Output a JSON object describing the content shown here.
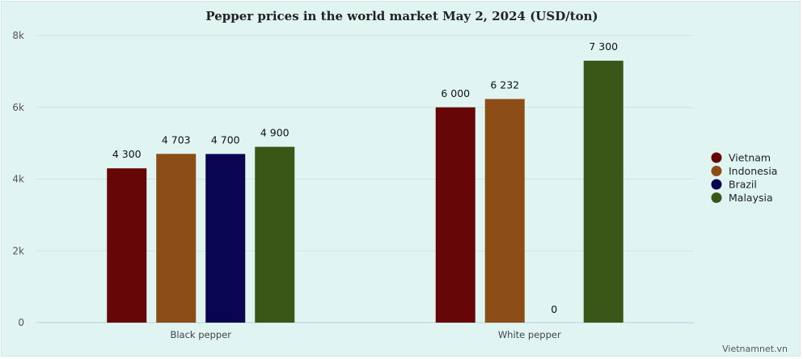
{
  "chart_data": {
    "type": "bar",
    "title": "Pepper prices in the world market May 2, 2024 (USD/ton)",
    "categories": [
      "Black pepper",
      "White pepper"
    ],
    "series": [
      {
        "name": "Vietnam",
        "values": [
          4300,
          6000
        ],
        "labels": [
          "4 300",
          "6 000"
        ]
      },
      {
        "name": "Indonesia",
        "values": [
          4703,
          6232
        ],
        "labels": [
          "4 703",
          "6 232"
        ]
      },
      {
        "name": "Brazil",
        "values": [
          4700,
          0
        ],
        "labels": [
          "4 700",
          "0"
        ]
      },
      {
        "name": "Malaysia",
        "values": [
          4900,
          7300
        ],
        "labels": [
          "4 900",
          "7 300"
        ]
      }
    ],
    "ylim": [
      0,
      8000
    ],
    "yticks": [
      0,
      2000,
      4000,
      6000,
      8000
    ],
    "ytick_labels": [
      "0",
      "2k",
      "4k",
      "6k",
      "8k"
    ],
    "grid": true,
    "legend": "right"
  },
  "colors": {
    "Vietnam": "#660606",
    "Indonesia": "#8d4d16",
    "Brazil": "#0a0550",
    "Malaysia": "#3b5717"
  },
  "credit": "Vietnamnet.vn"
}
